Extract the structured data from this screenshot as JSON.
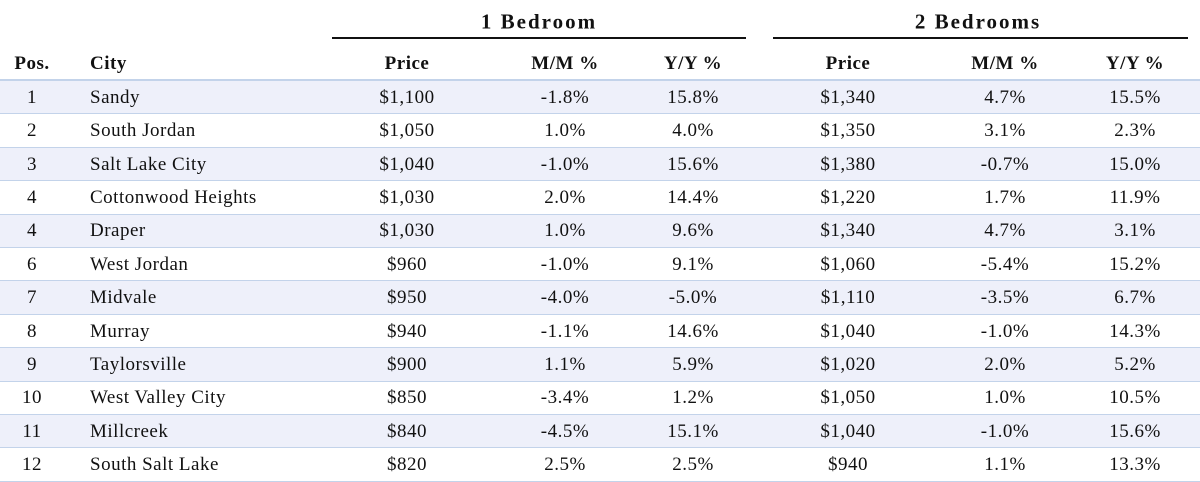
{
  "table": {
    "groups": [
      "1 Bedroom",
      "2 Bedrooms"
    ],
    "columns": [
      "Pos.",
      "City",
      "Price",
      "M/M %",
      "Y/Y %",
      "Price",
      "M/M %",
      "Y/Y %"
    ],
    "rows": [
      [
        "1",
        "Sandy",
        "$1,100",
        "-1.8%",
        "15.8%",
        "$1,340",
        "4.7%",
        "15.5%"
      ],
      [
        "2",
        "South Jordan",
        "$1,050",
        "1.0%",
        "4.0%",
        "$1,350",
        "3.1%",
        "2.3%"
      ],
      [
        "3",
        "Salt Lake City",
        "$1,040",
        "-1.0%",
        "15.6%",
        "$1,380",
        "-0.7%",
        "15.0%"
      ],
      [
        "4",
        "Cottonwood Heights",
        "$1,030",
        "2.0%",
        "14.4%",
        "$1,220",
        "1.7%",
        "11.9%"
      ],
      [
        "4",
        "Draper",
        "$1,030",
        "1.0%",
        "9.6%",
        "$1,340",
        "4.7%",
        "3.1%"
      ],
      [
        "6",
        "West Jordan",
        "$960",
        "-1.0%",
        "9.1%",
        "$1,060",
        "-5.4%",
        "15.2%"
      ],
      [
        "7",
        "Midvale",
        "$950",
        "-4.0%",
        "-5.0%",
        "$1,110",
        "-3.5%",
        "6.7%"
      ],
      [
        "8",
        "Murray",
        "$940",
        "-1.1%",
        "14.6%",
        "$1,040",
        "-1.0%",
        "14.3%"
      ],
      [
        "9",
        "Taylorsville",
        "$900",
        "1.1%",
        "5.9%",
        "$1,020",
        "2.0%",
        "5.2%"
      ],
      [
        "10",
        "West Valley City",
        "$850",
        "-3.4%",
        "1.2%",
        "$1,050",
        "1.0%",
        "10.5%"
      ],
      [
        "11",
        "Millcreek",
        "$840",
        "-4.5%",
        "15.1%",
        "$1,040",
        "-1.0%",
        "15.6%"
      ],
      [
        "12",
        "South Salt Lake",
        "$820",
        "2.5%",
        "2.5%",
        "$940",
        "1.1%",
        "13.3%"
      ]
    ]
  }
}
